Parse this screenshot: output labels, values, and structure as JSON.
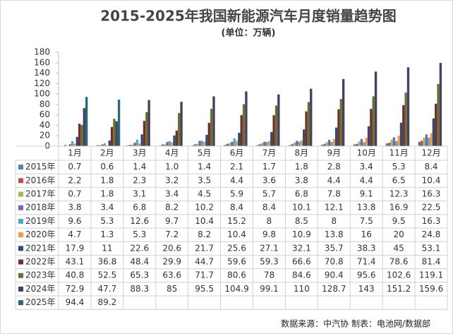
{
  "chart_data": {
    "type": "bar",
    "title": "2015-2025年我国新能源汽车月度销量趋势图",
    "subtitle": "(单位：万辆)",
    "source": "数据来源：中汽协  制表：电池网/数据部",
    "categories": [
      "1月",
      "2月",
      "3月",
      "4月",
      "5月",
      "6月",
      "7月",
      "8月",
      "9月",
      "10月",
      "11月",
      "12月"
    ],
    "ylim": [
      0,
      180
    ],
    "yticks": [
      0,
      20,
      40,
      60,
      80,
      100,
      120,
      140,
      160,
      180
    ],
    "grid": false,
    "series": [
      {
        "name": "2015年",
        "color": "#4f81bd",
        "values": [
          0.7,
          0.6,
          1.4,
          1.0,
          1.4,
          2.1,
          1.7,
          1.8,
          2.8,
          3.4,
          5.3,
          8.4
        ],
        "value_labels": [
          "0.7",
          "0.6",
          "1.4",
          "1.0",
          "1.4",
          "2.1",
          "1.7",
          "1.8",
          "2.8",
          "3.4",
          "5.3",
          "8.4"
        ]
      },
      {
        "name": "2016年",
        "color": "#c0504d",
        "values": [
          2.2,
          1.8,
          2.3,
          3.2,
          3.5,
          4.4,
          3.6,
          3.8,
          4.4,
          4.4,
          6.5,
          10.4
        ]
      },
      {
        "name": "2017年",
        "color": "#9bbb59",
        "values": [
          0.7,
          1.8,
          3.1,
          3.4,
          4.5,
          5.9,
          5.7,
          6.8,
          7.8,
          9.1,
          12.3,
          16.3
        ]
      },
      {
        "name": "2018年",
        "color": "#8064a2",
        "values": [
          3.8,
          3.4,
          6.8,
          8.2,
          10.2,
          8.4,
          8.4,
          10.1,
          12.1,
          13.8,
          16.9,
          22.5
        ]
      },
      {
        "name": "2019年",
        "color": "#4bacc6",
        "values": [
          9.6,
          5.3,
          12.6,
          9.7,
          10.4,
          15.2,
          8,
          8.5,
          8,
          7.5,
          9.5,
          16.3
        ]
      },
      {
        "name": "2020年",
        "color": "#f79646",
        "values": [
          4.7,
          1.3,
          5.3,
          7.2,
          8.2,
          10.4,
          9.8,
          10.9,
          13.8,
          16,
          20,
          24.8
        ]
      },
      {
        "name": "2021年",
        "color": "#2c4d75",
        "values": [
          17.9,
          11,
          22.6,
          20.6,
          21.7,
          25.6,
          27.1,
          32.1,
          35.7,
          38.3,
          45,
          53.1
        ]
      },
      {
        "name": "2022年",
        "color": "#772c2a",
        "values": [
          43.1,
          36.8,
          48.4,
          29.9,
          44.7,
          59.6,
          59.3,
          66.6,
          70.8,
          71.4,
          78.6,
          81.4
        ]
      },
      {
        "name": "2023年",
        "color": "#5f7530",
        "values": [
          40.8,
          52.5,
          65.3,
          63.6,
          71.7,
          80.6,
          78,
          84.6,
          90.4,
          95.6,
          102.6,
          119.1
        ]
      },
      {
        "name": "2024年",
        "color": "#4d3b62",
        "values": [
          72.9,
          47.7,
          88.3,
          85,
          95.5,
          104.9,
          99.1,
          110,
          128.7,
          143,
          151.2,
          159.6
        ]
      },
      {
        "name": "2025年",
        "color": "#276a7c",
        "values": [
          94.4,
          89.2,
          null,
          null,
          null,
          null,
          null,
          null,
          null,
          null,
          null,
          null
        ]
      }
    ]
  }
}
